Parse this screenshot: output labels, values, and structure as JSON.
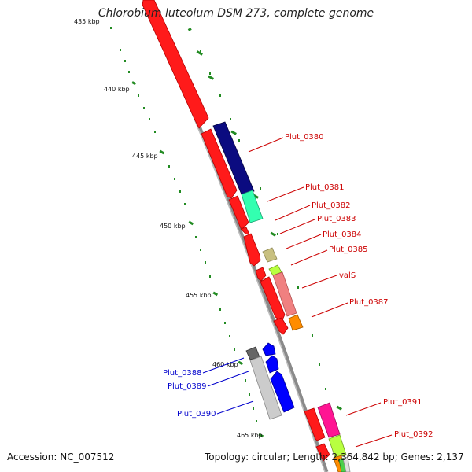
{
  "title": "Chlorobium luteolum DSM 273, complete genome",
  "footer": {
    "accession": "Accession: NC_007512",
    "summary": "Topology: circular; Length: 2,364,842 bp; Genes: 2,137"
  },
  "colors": {
    "red_gene": "#ff1a1a",
    "label_red": "#cc0000",
    "label_blue": "#0000cc",
    "navy_gene": "#0b0b80",
    "teal_gene": "#33ffb0",
    "khaki_gene": "#c8c080",
    "lime_gene": "#b8ff40",
    "salmon_gene": "#f08080",
    "orange_gene": "#ff8c00",
    "blue_gene": "#0000ff",
    "silver_gene": "#cccccc",
    "gray_gene": "#666666",
    "magenta_gene": "#ff1493",
    "green_tick": "#228b22"
  },
  "ruler": {
    "ticks": [
      "435 kbp",
      "440 kbp",
      "445 kbp",
      "450 kbp",
      "455 kbp",
      "460 kbp",
      "465 kbp"
    ]
  },
  "genes": {
    "right_labels": [
      "Plut_0380",
      "Plut_0381",
      "Plut_0382",
      "Plut_0383",
      "Plut_0384",
      "Plut_0385",
      "valS",
      "Plut_0387",
      "Plut_0391",
      "Plut_0392"
    ],
    "left_labels": [
      "Plut_0388",
      "Plut_0389",
      "Plut_0390"
    ]
  }
}
